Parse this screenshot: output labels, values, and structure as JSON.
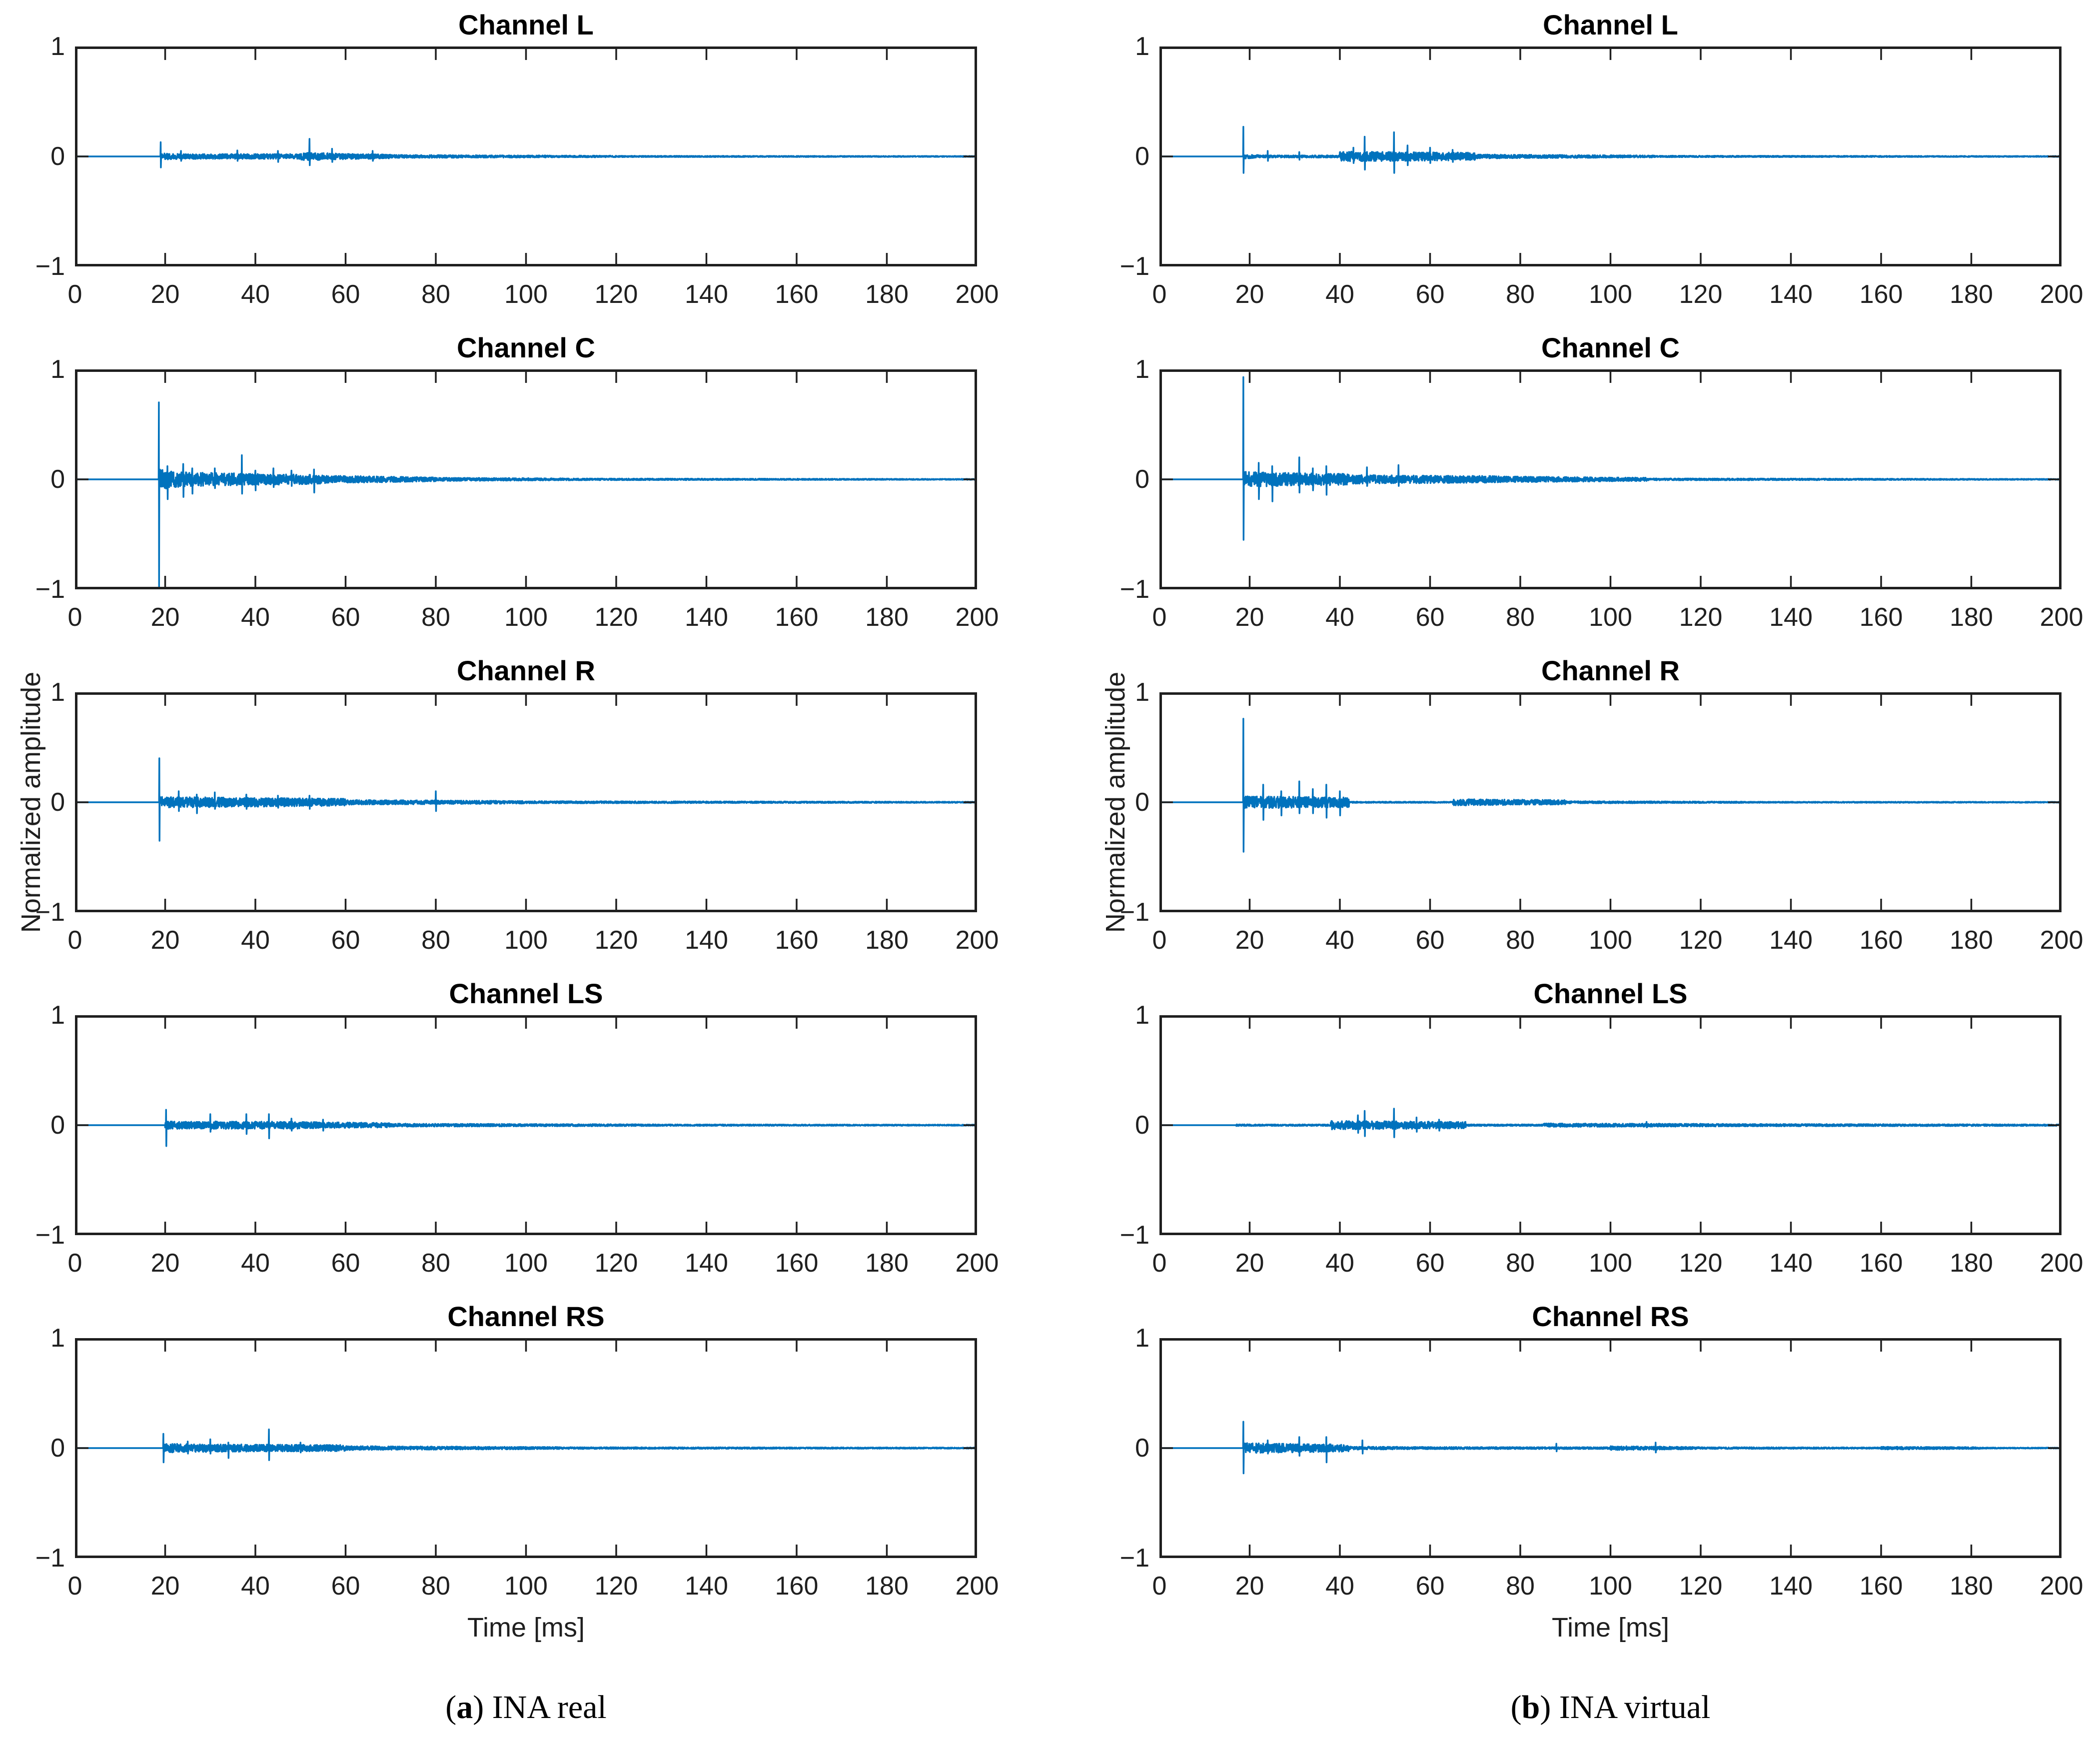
{
  "figure": {
    "background": "#ffffff",
    "line_color": "#0072BD",
    "axis_color": "#1f1f1f",
    "xlabel": "Time [ms]",
    "ylabel": "Normalized amplitude",
    "captions": {
      "a": {
        "open": "(",
        "letter": "a",
        "close": ")",
        "text": " INA real"
      },
      "b": {
        "open": "(",
        "letter": "b",
        "close": ")",
        "text": " INA virtual"
      }
    }
  },
  "chart_data": [
    {
      "id": "a-L",
      "column": "a",
      "row": 0,
      "type": "line",
      "title": "Channel L",
      "xlim": [
        0,
        200
      ],
      "ylim": [
        -1,
        1
      ],
      "xticks": [
        0,
        20,
        40,
        60,
        80,
        100,
        120,
        140,
        160,
        180,
        200
      ],
      "yticks": [
        1,
        0,
        -1
      ],
      "xlabel": "",
      "ylabel": "",
      "seed": 11,
      "noise_bands": [
        [
          19,
          24,
          0.03,
          0.022
        ],
        [
          24,
          50,
          0.022,
          0.022
        ],
        [
          50,
          56,
          0.035,
          0.03
        ],
        [
          56,
          70,
          0.028,
          0.018
        ],
        [
          70,
          120,
          0.014,
          0.007
        ],
        [
          120,
          200,
          0.006,
          0.004
        ]
      ],
      "spikes": [
        [
          19,
          0.13,
          0.1
        ],
        [
          23.5,
          0.05,
          0.04
        ],
        [
          36,
          0.055,
          0.04
        ],
        [
          45,
          0.05,
          0.05
        ],
        [
          52,
          0.16,
          0.08
        ],
        [
          57,
          0.07,
          0.05
        ],
        [
          66,
          0.05,
          0.04
        ]
      ]
    },
    {
      "id": "a-C",
      "column": "a",
      "row": 1,
      "type": "line",
      "title": "Channel C",
      "xlim": [
        0,
        200
      ],
      "ylim": [
        -1,
        1
      ],
      "xticks": [
        0,
        20,
        40,
        60,
        80,
        100,
        120,
        140,
        160,
        180,
        200
      ],
      "yticks": [
        1,
        0,
        -1
      ],
      "xlabel": "",
      "ylabel": "",
      "seed": 22,
      "noise_bands": [
        [
          18.6,
          24,
          0.09,
          0.07
        ],
        [
          24,
          36,
          0.065,
          0.055
        ],
        [
          36,
          55,
          0.055,
          0.04
        ],
        [
          55,
          80,
          0.035,
          0.018
        ],
        [
          80,
          110,
          0.015,
          0.009
        ],
        [
          110,
          200,
          0.008,
          0.004
        ]
      ],
      "spikes": [
        [
          18.6,
          0.7,
          1.0
        ],
        [
          20.5,
          0.12,
          0.18
        ],
        [
          24,
          0.14,
          0.16
        ],
        [
          26,
          0.1,
          0.13
        ],
        [
          31,
          0.1,
          0.08
        ],
        [
          37,
          0.22,
          0.13
        ],
        [
          40,
          0.08,
          0.1
        ],
        [
          44,
          0.1,
          0.07
        ],
        [
          48,
          0.08,
          0.06
        ],
        [
          53,
          0.09,
          0.12
        ]
      ]
    },
    {
      "id": "a-R",
      "column": "a",
      "row": 2,
      "type": "line",
      "title": "Channel R",
      "xlim": [
        0,
        200
      ],
      "ylim": [
        -1,
        1
      ],
      "xticks": [
        0,
        20,
        40,
        60,
        80,
        100,
        120,
        140,
        160,
        180,
        200
      ],
      "yticks": [
        1,
        0,
        -1
      ],
      "xlabel": "",
      "ylabel": "Normalized amplitude",
      "seed": 33,
      "noise_bands": [
        [
          18.7,
          30,
          0.05,
          0.045
        ],
        [
          30,
          60,
          0.045,
          0.032
        ],
        [
          60,
          100,
          0.022,
          0.012
        ],
        [
          100,
          200,
          0.01,
          0.005
        ]
      ],
      "spikes": [
        [
          18.7,
          0.4,
          0.35
        ],
        [
          23,
          0.1,
          0.08
        ],
        [
          27,
          0.07,
          0.1
        ],
        [
          31,
          0.09,
          0.06
        ],
        [
          38,
          0.07,
          0.06
        ],
        [
          45,
          0.06,
          0.05
        ],
        [
          52,
          0.06,
          0.06
        ],
        [
          80,
          0.1,
          0.08
        ]
      ]
    },
    {
      "id": "a-LS",
      "column": "a",
      "row": 3,
      "type": "line",
      "title": "Channel LS",
      "xlim": [
        0,
        200
      ],
      "ylim": [
        -1,
        1
      ],
      "xticks": [
        0,
        20,
        40,
        60,
        80,
        100,
        120,
        140,
        160,
        180,
        200
      ],
      "yticks": [
        1,
        0,
        -1
      ],
      "xlabel": "",
      "ylabel": "",
      "seed": 44,
      "noise_bands": [
        [
          20,
          30,
          0.035,
          0.03
        ],
        [
          30,
          50,
          0.035,
          0.032
        ],
        [
          50,
          70,
          0.03,
          0.02
        ],
        [
          70,
          130,
          0.014,
          0.008
        ],
        [
          130,
          200,
          0.007,
          0.005
        ]
      ],
      "spikes": [
        [
          20.2,
          0.14,
          0.19
        ],
        [
          30,
          0.1,
          0.06
        ],
        [
          38,
          0.1,
          0.08
        ],
        [
          43,
          0.1,
          0.12
        ],
        [
          48,
          0.06,
          0.05
        ],
        [
          55,
          0.05,
          0.05
        ]
      ]
    },
    {
      "id": "a-RS",
      "column": "a",
      "row": 4,
      "type": "line",
      "title": "Channel RS",
      "xlim": [
        0,
        200
      ],
      "ylim": [
        -1,
        1
      ],
      "xticks": [
        0,
        20,
        40,
        60,
        80,
        100,
        120,
        140,
        160,
        180,
        200
      ],
      "yticks": [
        1,
        0,
        -1
      ],
      "xlabel": "Time [ms]",
      "ylabel": "",
      "seed": 55,
      "noise_bands": [
        [
          19.6,
          30,
          0.04,
          0.035
        ],
        [
          30,
          60,
          0.035,
          0.028
        ],
        [
          60,
          110,
          0.018,
          0.009
        ],
        [
          110,
          200,
          0.008,
          0.005
        ]
      ],
      "spikes": [
        [
          19.6,
          0.13,
          0.13
        ],
        [
          25,
          0.06,
          0.05
        ],
        [
          30,
          0.08,
          0.05
        ],
        [
          34,
          0.05,
          0.09
        ],
        [
          43,
          0.17,
          0.11
        ],
        [
          50,
          0.05,
          0.04
        ]
      ]
    },
    {
      "id": "b-L",
      "column": "b",
      "row": 0,
      "type": "line",
      "title": "Channel L",
      "xlim": [
        0,
        200
      ],
      "ylim": [
        -1,
        1
      ],
      "xticks": [
        0,
        20,
        40,
        60,
        80,
        100,
        120,
        140,
        160,
        180,
        200
      ],
      "yticks": [
        1,
        0,
        -1
      ],
      "xlabel": "",
      "ylabel": "",
      "seed": 66,
      "noise_bands": [
        [
          18.6,
          22,
          0.02,
          0.012
        ],
        [
          22,
          40,
          0.01,
          0.01
        ],
        [
          40,
          70,
          0.045,
          0.035
        ],
        [
          70,
          110,
          0.018,
          0.009
        ],
        [
          110,
          200,
          0.007,
          0.004
        ]
      ],
      "spikes": [
        [
          18.6,
          0.27,
          0.15
        ],
        [
          24,
          0.05,
          0.04
        ],
        [
          31,
          0.04,
          0.03
        ],
        [
          43,
          0.08,
          0.06
        ],
        [
          45.5,
          0.18,
          0.12
        ],
        [
          52,
          0.22,
          0.15
        ],
        [
          55,
          0.1,
          0.08
        ],
        [
          60,
          0.08,
          0.06
        ],
        [
          65,
          0.06,
          0.05
        ]
      ]
    },
    {
      "id": "b-C",
      "column": "b",
      "row": 1,
      "type": "line",
      "title": "Channel C",
      "xlim": [
        0,
        200
      ],
      "ylim": [
        -1,
        1
      ],
      "xticks": [
        0,
        20,
        40,
        60,
        80,
        100,
        120,
        140,
        160,
        180,
        200
      ],
      "yticks": [
        1,
        0,
        -1
      ],
      "xlabel": "",
      "ylabel": "",
      "seed": 77,
      "noise_bands": [
        [
          18.6,
          26,
          0.07,
          0.06
        ],
        [
          26,
          42,
          0.06,
          0.05
        ],
        [
          42,
          75,
          0.04,
          0.03
        ],
        [
          75,
          108,
          0.028,
          0.015
        ],
        [
          108,
          200,
          0.009,
          0.004
        ]
      ],
      "spikes": [
        [
          18.6,
          0.93,
          0.55
        ],
        [
          22,
          0.15,
          0.18
        ],
        [
          25,
          0.12,
          0.2
        ],
        [
          31,
          0.2,
          0.12
        ],
        [
          34,
          0.1,
          0.1
        ],
        [
          37,
          0.12,
          0.14
        ],
        [
          46,
          0.11,
          0.06
        ],
        [
          53,
          0.13,
          0.06
        ]
      ]
    },
    {
      "id": "b-R",
      "column": "b",
      "row": 2,
      "type": "line",
      "title": "Channel R",
      "xlim": [
        0,
        200
      ],
      "ylim": [
        -1,
        1
      ],
      "xticks": [
        0,
        20,
        40,
        60,
        80,
        100,
        120,
        140,
        160,
        180,
        200
      ],
      "yticks": [
        1,
        0,
        -1
      ],
      "xlabel": "",
      "ylabel": "Normalized amplitude",
      "seed": 88,
      "noise_bands": [
        [
          18.6,
          42,
          0.055,
          0.045
        ],
        [
          42,
          65,
          0.006,
          0.005
        ],
        [
          65,
          90,
          0.03,
          0.02
        ],
        [
          90,
          130,
          0.01,
          0.006
        ],
        [
          130,
          200,
          0.005,
          0.004
        ]
      ],
      "spikes": [
        [
          18.6,
          0.76,
          0.45
        ],
        [
          23,
          0.16,
          0.16
        ],
        [
          27,
          0.1,
          0.12
        ],
        [
          31,
          0.19,
          0.1
        ],
        [
          34,
          0.12,
          0.1
        ],
        [
          37,
          0.16,
          0.14
        ],
        [
          40,
          0.1,
          0.12
        ]
      ]
    },
    {
      "id": "b-LS",
      "column": "b",
      "row": 3,
      "type": "line",
      "title": "Channel LS",
      "xlim": [
        0,
        200
      ],
      "ylim": [
        -1,
        1
      ],
      "xticks": [
        0,
        20,
        40,
        60,
        80,
        100,
        120,
        140,
        160,
        180,
        200
      ],
      "yticks": [
        1,
        0,
        -1
      ],
      "xlabel": "",
      "ylabel": "",
      "seed": 99,
      "noise_bands": [
        [
          17,
          25,
          0.008,
          0.006
        ],
        [
          25,
          38,
          0.007,
          0.007
        ],
        [
          38,
          68,
          0.04,
          0.03
        ],
        [
          68,
          85,
          0.008,
          0.007
        ],
        [
          85,
          125,
          0.016,
          0.012
        ],
        [
          125,
          200,
          0.011,
          0.007
        ]
      ],
      "spikes": [
        [
          44,
          0.09,
          0.07
        ],
        [
          45.5,
          0.13,
          0.1
        ],
        [
          52,
          0.15,
          0.11
        ],
        [
          57,
          0.07,
          0.06
        ],
        [
          62,
          0.05,
          0.05
        ],
        [
          108,
          0.03,
          0.02
        ]
      ]
    },
    {
      "id": "b-RS",
      "column": "b",
      "row": 4,
      "type": "line",
      "title": "Channel RS",
      "xlim": [
        0,
        200
      ],
      "ylim": [
        -1,
        1
      ],
      "xticks": [
        0,
        20,
        40,
        60,
        80,
        100,
        120,
        140,
        160,
        180,
        200
      ],
      "yticks": [
        1,
        0,
        -1
      ],
      "xlabel": "Time [ms]",
      "ylabel": "",
      "seed": 110,
      "noise_bands": [
        [
          18.6,
          28,
          0.045,
          0.04
        ],
        [
          28,
          42,
          0.04,
          0.032
        ],
        [
          42,
          60,
          0.014,
          0.01
        ],
        [
          60,
          100,
          0.01,
          0.008
        ],
        [
          100,
          120,
          0.018,
          0.01
        ],
        [
          120,
          160,
          0.008,
          0.006
        ],
        [
          160,
          182,
          0.013,
          0.008
        ],
        [
          182,
          200,
          0.005,
          0.004
        ]
      ],
      "spikes": [
        [
          18.6,
          0.24,
          0.23
        ],
        [
          24,
          0.07,
          0.05
        ],
        [
          31,
          0.1,
          0.07
        ],
        [
          37,
          0.1,
          0.13
        ],
        [
          45,
          0.07,
          0.05
        ],
        [
          88,
          0.04,
          0.03
        ],
        [
          110,
          0.05,
          0.04
        ]
      ]
    }
  ]
}
